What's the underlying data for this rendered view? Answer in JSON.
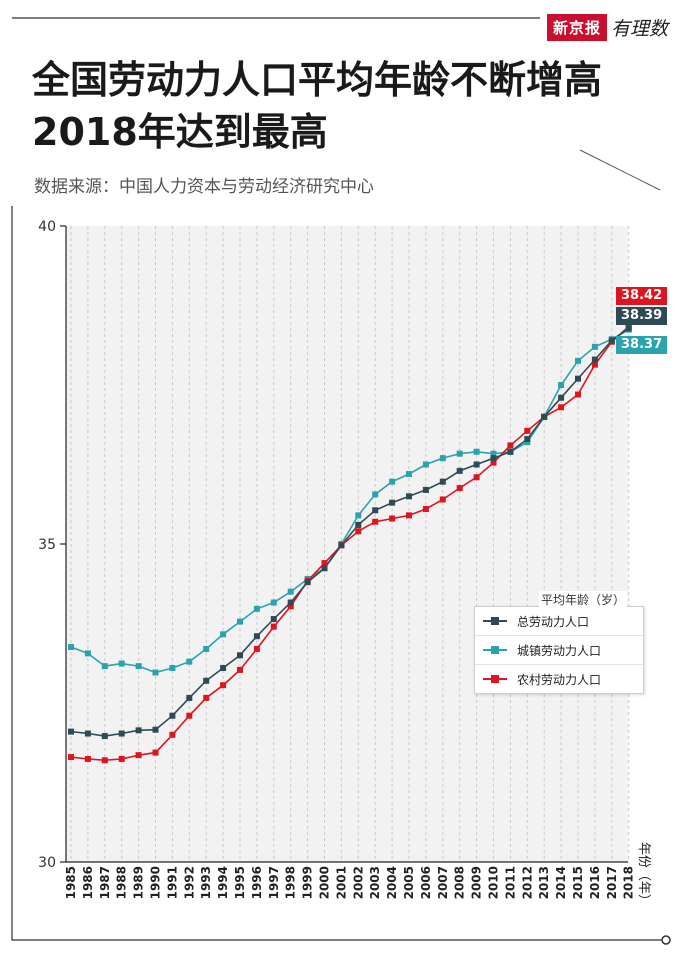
{
  "brand": {
    "logo_main": "新京报",
    "logo_script": "有理数"
  },
  "title_line1": "全国劳动力人口平均年龄不断增高",
  "title_line2": "2018年达到最高",
  "source": "数据来源：中国人力资本与劳动经济研究中心",
  "legend": {
    "title": "平均年龄（岁）"
  },
  "end_labels": {
    "rural": "38.42",
    "total": "38.39",
    "urban": "38.37"
  },
  "colors": {
    "total": "#2e4a55",
    "urban": "#2aa3ad",
    "rural": "#e0141e",
    "accent": "#c8102e"
  },
  "chart_data": {
    "type": "line",
    "title": "全国劳动力人口平均年龄不断增高 2018年达到最高",
    "xlabel": "年份（年）",
    "ylabel": "",
    "ylim": [
      30,
      40
    ],
    "yticks": [
      30,
      35,
      40
    ],
    "grid": true,
    "legend_position": "right",
    "x": [
      "1985",
      "1986",
      "1987",
      "1988",
      "1989",
      "1990",
      "1991",
      "1992",
      "1993",
      "1994",
      "1995",
      "1996",
      "1997",
      "1998",
      "1999",
      "2000",
      "2001",
      "2002",
      "2003",
      "2004",
      "2005",
      "2006",
      "2007",
      "2008",
      "2009",
      "2010",
      "2011",
      "2012",
      "2013",
      "2014",
      "2015",
      "2016",
      "2017",
      "2018"
    ],
    "series": [
      {
        "name": "总劳动力人口",
        "key": "total",
        "values": [
          32.05,
          32.02,
          31.98,
          32.02,
          32.07,
          32.08,
          32.3,
          32.58,
          32.85,
          33.05,
          33.25,
          33.55,
          33.82,
          34.08,
          34.4,
          34.62,
          34.98,
          35.3,
          35.53,
          35.65,
          35.75,
          35.85,
          35.98,
          36.15,
          36.25,
          36.35,
          36.45,
          36.65,
          37.0,
          37.3,
          37.6,
          37.9,
          38.2,
          38.39
        ]
      },
      {
        "name": "城镇劳动力人口",
        "key": "urban",
        "values": [
          33.38,
          33.28,
          33.08,
          33.12,
          33.08,
          32.98,
          33.05,
          33.15,
          33.35,
          33.58,
          33.78,
          33.98,
          34.08,
          34.25,
          34.45,
          34.62,
          35.0,
          35.45,
          35.78,
          35.98,
          36.1,
          36.25,
          36.35,
          36.42,
          36.45,
          36.42,
          36.45,
          36.6,
          37.0,
          37.5,
          37.88,
          38.1,
          38.22,
          38.37
        ]
      },
      {
        "name": "农村劳动力人口",
        "key": "rural",
        "values": [
          31.65,
          31.62,
          31.6,
          31.62,
          31.68,
          31.72,
          32.0,
          32.3,
          32.58,
          32.78,
          33.02,
          33.35,
          33.7,
          34.02,
          34.42,
          34.7,
          34.98,
          35.2,
          35.35,
          35.4,
          35.45,
          35.55,
          35.7,
          35.88,
          36.05,
          36.28,
          36.55,
          36.78,
          37.0,
          37.15,
          37.35,
          37.82,
          38.18,
          38.42
        ]
      }
    ]
  }
}
